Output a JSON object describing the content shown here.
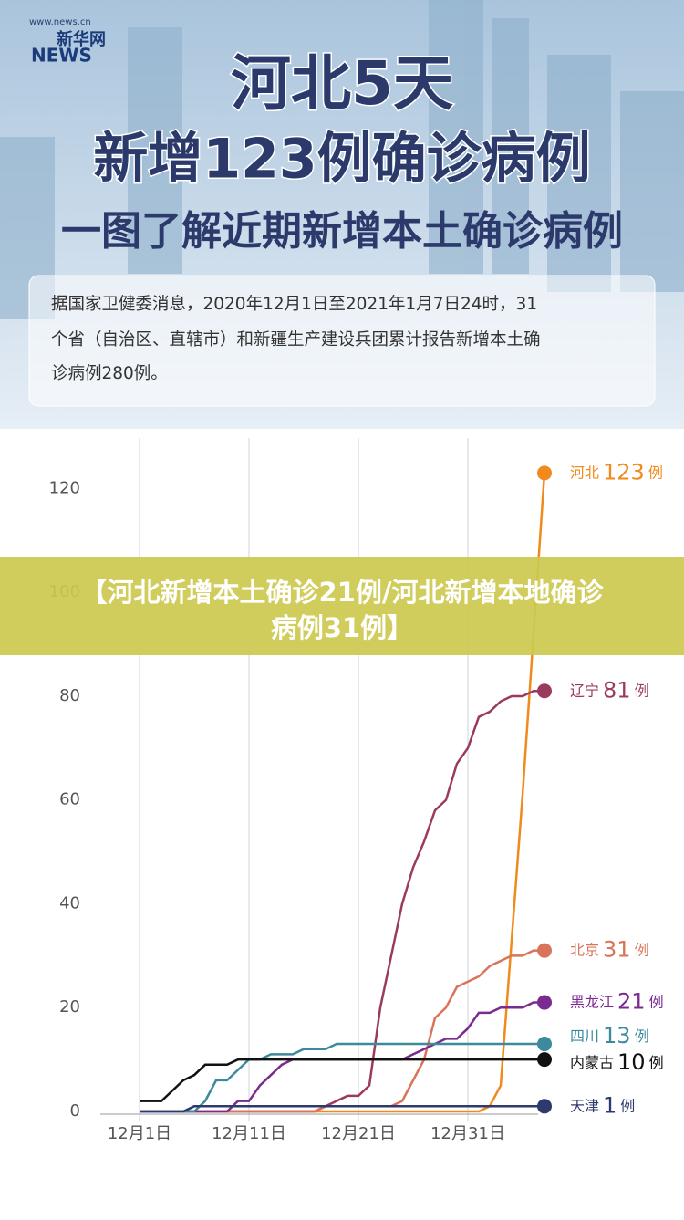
{
  "header": {
    "logo_brand": "新华网",
    "logo_news": "NEWS",
    "logo_url": "www.news.cn",
    "title_lines": [
      "河北5天",
      "新增123例确诊病例"
    ],
    "subtitle": "一图了解近期新增本土确诊病例",
    "info_lines": [
      "据国家卫健委消息，2020年12月1日至2021年1月7日24时，31",
      "个省（自治区、直辖市）和新疆生产建设兵团累计报告新增本土确",
      "诊病例280例。"
    ]
  },
  "banner": {
    "lines": [
      "【河北新增本土确诊21例/河北新增本地确诊",
      "病例31例】"
    ]
  },
  "chart_data": {
    "type": "line",
    "unit": "例",
    "categories": [
      "12月1日",
      null,
      null,
      null,
      null,
      null,
      null,
      null,
      null,
      null,
      "12月11日",
      null,
      null,
      null,
      null,
      null,
      null,
      null,
      null,
      null,
      "12月21日",
      null,
      null,
      null,
      null,
      null,
      null,
      null,
      null,
      null,
      "12月31日",
      null,
      null,
      null,
      null,
      null,
      null,
      null
    ],
    "ylim": [
      0,
      125
    ],
    "yticks": [
      0,
      20,
      40,
      60,
      80,
      100,
      120
    ],
    "grid": true,
    "series": [
      {
        "name": "河北",
        "color": "#f08a1c",
        "values": [
          0,
          0,
          0,
          0,
          0,
          0,
          0,
          0,
          0,
          0,
          0,
          0,
          0,
          0,
          0,
          0,
          0,
          0,
          0,
          0,
          0,
          0,
          0,
          0,
          0,
          0,
          0,
          0,
          0,
          0,
          0,
          0,
          1,
          5,
          33,
          61,
          92,
          123
        ]
      },
      {
        "name": "辽宁",
        "color": "#9a3a5e",
        "values": [
          0,
          0,
          0,
          0,
          0,
          0,
          0,
          0,
          0,
          0,
          0,
          0,
          0,
          0,
          0,
          0,
          0,
          1,
          2,
          3,
          3,
          5,
          20,
          30,
          40,
          47,
          52,
          58,
          60,
          67,
          70,
          76,
          77,
          79,
          80,
          80,
          81,
          81
        ]
      },
      {
        "name": "北京",
        "color": "#d9745a",
        "values": [
          0,
          0,
          0,
          0,
          0,
          0,
          0,
          0,
          0,
          0,
          0,
          0,
          0,
          0,
          0,
          0,
          0,
          1,
          1,
          1,
          1,
          1,
          1,
          1,
          2,
          6,
          10,
          18,
          20,
          24,
          25,
          26,
          28,
          29,
          30,
          30,
          31,
          31
        ]
      },
      {
        "name": "黑龙江",
        "color": "#7b2a8f",
        "values": [
          0,
          0,
          0,
          0,
          0,
          0,
          0,
          0,
          0,
          2,
          2,
          5,
          7,
          9,
          10,
          10,
          10,
          10,
          10,
          10,
          10,
          10,
          10,
          10,
          10,
          11,
          12,
          13,
          14,
          14,
          16,
          19,
          19,
          20,
          20,
          20,
          21,
          21
        ]
      },
      {
        "name": "四川",
        "color": "#3c8a9e",
        "values": [
          0,
          0,
          0,
          0,
          0,
          0,
          2,
          6,
          6,
          8,
          10,
          10,
          11,
          11,
          11,
          12,
          12,
          12,
          13,
          13,
          13,
          13,
          13,
          13,
          13,
          13,
          13,
          13,
          13,
          13,
          13,
          13,
          13,
          13,
          13,
          13,
          13,
          13
        ]
      },
      {
        "name": "内蒙古",
        "color": "#111111",
        "values": [
          2,
          2,
          2,
          4,
          6,
          7,
          9,
          9,
          9,
          10,
          10,
          10,
          10,
          10,
          10,
          10,
          10,
          10,
          10,
          10,
          10,
          10,
          10,
          10,
          10,
          10,
          10,
          10,
          10,
          10,
          10,
          10,
          10,
          10,
          10,
          10,
          10,
          10
        ]
      },
      {
        "name": "天津",
        "color": "#2e3a6e",
        "values": [
          0,
          0,
          0,
          0,
          0,
          1,
          1,
          1,
          1,
          1,
          1,
          1,
          1,
          1,
          1,
          1,
          1,
          1,
          1,
          1,
          1,
          1,
          1,
          1,
          1,
          1,
          1,
          1,
          1,
          1,
          1,
          1,
          1,
          1,
          1,
          1,
          1,
          1
        ]
      }
    ]
  }
}
